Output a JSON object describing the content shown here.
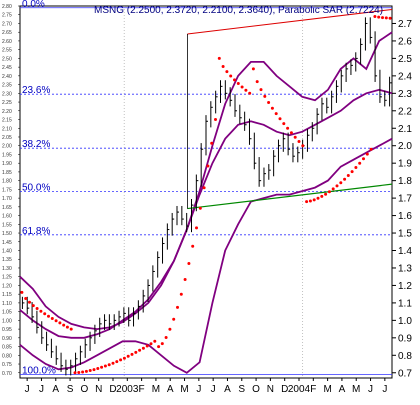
{
  "chart_data": {
    "type": "line",
    "title": "MSNG (2.2500, 2.3720, 2.2100, 2.3640), Parabolic SAR (2.7224)",
    "xlabel": "",
    "ylabel": "",
    "ylim": [
      0.67,
      2.8
    ],
    "x_axis_labels": [
      "J",
      "J",
      "A",
      "S",
      "O",
      "N",
      "D",
      "2003",
      "F",
      "M",
      "A",
      "M",
      "J",
      "J",
      "A",
      "S",
      "O",
      "N",
      "D",
      "2004",
      "F",
      "M",
      "A",
      "M",
      "J",
      "J"
    ],
    "y_axis_right": {
      "ticks": [
        2.7,
        2.6,
        2.5,
        2.4,
        2.3,
        2.2,
        2.1,
        2.0,
        1.9,
        1.8,
        1.7,
        1.6,
        1.5,
        1.4,
        1.3,
        1.2,
        1.1,
        1.0,
        0.9,
        0.8,
        0.7
      ],
      "labels": [
        "2.7",
        "2.6",
        "2.5",
        "2.4",
        "2.3",
        "2.2",
        "2.1",
        "2.0",
        "1.9",
        "1.8",
        "1.7",
        "1.6",
        "1.5",
        "1.4",
        "1.3",
        "1.2",
        "1.1",
        "1.0",
        "0.9",
        "0.8",
        "0.7"
      ]
    },
    "y_axis_left": {
      "labels": [
        "2.80",
        "2.75",
        "2.70",
        "2.65",
        "2.60",
        "2.55",
        "2.50",
        "2.45",
        "2.40",
        "2.35",
        "2.30",
        "2.25",
        "2.20",
        "2.15",
        "2.10",
        "2.05",
        "2.00",
        "1.95",
        "1.90",
        "1.85",
        "1.80",
        "1.75",
        "1.70",
        "1.65",
        "1.60",
        "1.55",
        "1.50",
        "1.45",
        "1.40",
        "1.35",
        "1.30",
        "1.25",
        "1.20",
        "1.15",
        "1.10",
        "1.05",
        "1.00",
        "0.95",
        "0.90",
        "0.85",
        "0.80",
        "0.75",
        "0.70"
      ]
    },
    "fibonacci_levels": [
      {
        "label": "0.0%",
        "value": 2.79
      },
      {
        "label": "23.6%",
        "value": 2.295
      },
      {
        "label": "38.2%",
        "value": 1.986
      },
      {
        "label": "50.0%",
        "value": 1.738
      },
      {
        "label": "61.8%",
        "value": 1.49
      },
      {
        "label": "100.0%",
        "value": 0.69
      }
    ],
    "colors": {
      "background": "#ffffff",
      "price": "#000000",
      "bands": "#800080",
      "sar": "#ff0000",
      "fib": "#3333ff",
      "channel_upper": "#dd0000",
      "channel_lower": "#008800"
    },
    "price_series": [
      1.1,
      1.07,
      1.02,
      0.96,
      0.9,
      0.86,
      0.82,
      0.78,
      0.74,
      0.72,
      0.74,
      0.78,
      0.82,
      0.86,
      0.9,
      0.94,
      0.98,
      1.0,
      0.98,
      1.0,
      1.02,
      1.04,
      1.0,
      1.04,
      1.08,
      1.14,
      1.2,
      1.28,
      1.36,
      1.44,
      1.52,
      1.58,
      1.62,
      1.58,
      1.54,
      1.66,
      1.8,
      1.98,
      2.14,
      2.22,
      2.28,
      2.34,
      2.3,
      2.26,
      2.2,
      2.16,
      2.12,
      2.04,
      1.9,
      1.8,
      1.84,
      1.86,
      1.94,
      2.0,
      2.04,
      1.98,
      1.94,
      1.96,
      2.0,
      2.06,
      2.1,
      2.18,
      2.24,
      2.22,
      2.28,
      2.34,
      2.4,
      2.44,
      2.46,
      2.5,
      2.58,
      2.7,
      2.62,
      2.4,
      2.28,
      2.26,
      2.36
    ],
    "sar_segments": [
      {
        "start": 1.16,
        "end": 0.95,
        "count": 14,
        "side": "above"
      },
      {
        "start": 0.7,
        "end": 0.88,
        "count": 22,
        "side": "below"
      },
      {
        "start": 0.85,
        "end": 2.15,
        "count": 16,
        "side": "below"
      },
      {
        "start": 2.5,
        "end": 2.3,
        "count": 9,
        "side": "above"
      },
      {
        "start": 2.44,
        "end": 2.0,
        "count": 14,
        "side": "above"
      },
      {
        "start": 1.68,
        "end": 1.98,
        "count": 18,
        "side": "below"
      },
      {
        "start": 2.74,
        "end": 2.73,
        "count": 5,
        "side": "above"
      }
    ],
    "bands": {
      "upper": [
        1.25,
        1.18,
        1.08,
        1.02,
        0.98,
        0.96,
        0.95,
        0.96,
        0.99,
        1.04,
        1.1,
        1.2,
        1.34,
        1.52,
        1.74,
        2.0,
        2.24,
        2.4,
        2.48,
        2.48,
        2.4,
        2.34,
        2.28,
        2.26,
        2.32,
        2.44,
        2.5,
        2.44,
        2.6,
        2.65
      ],
      "middle": [
        1.06,
        1.0,
        0.95,
        0.91,
        0.9,
        0.9,
        0.92,
        0.95,
        1.0,
        1.05,
        1.12,
        1.22,
        1.34,
        1.52,
        1.72,
        1.9,
        2.04,
        2.12,
        2.14,
        2.12,
        2.08,
        2.06,
        2.08,
        2.12,
        2.16,
        2.2,
        2.26,
        2.3,
        2.32,
        2.3
      ],
      "lower": [
        0.86,
        0.8,
        0.75,
        0.72,
        0.73,
        0.76,
        0.8,
        0.84,
        0.88,
        0.88,
        0.86,
        0.8,
        0.74,
        0.7,
        0.76,
        1.1,
        1.4,
        1.55,
        1.68,
        1.7,
        1.72,
        1.72,
        1.74,
        1.76,
        1.8,
        1.88,
        1.92,
        1.96,
        2.0,
        2.04
      ]
    },
    "channel_upper": {
      "x_start": 0.45,
      "x_end": 1.0,
      "y_start": 2.64,
      "y_end": 2.78
    },
    "channel_lower": {
      "x_start": 0.45,
      "x_end": 1.0,
      "y_start": 1.64,
      "y_end": 1.78
    }
  }
}
